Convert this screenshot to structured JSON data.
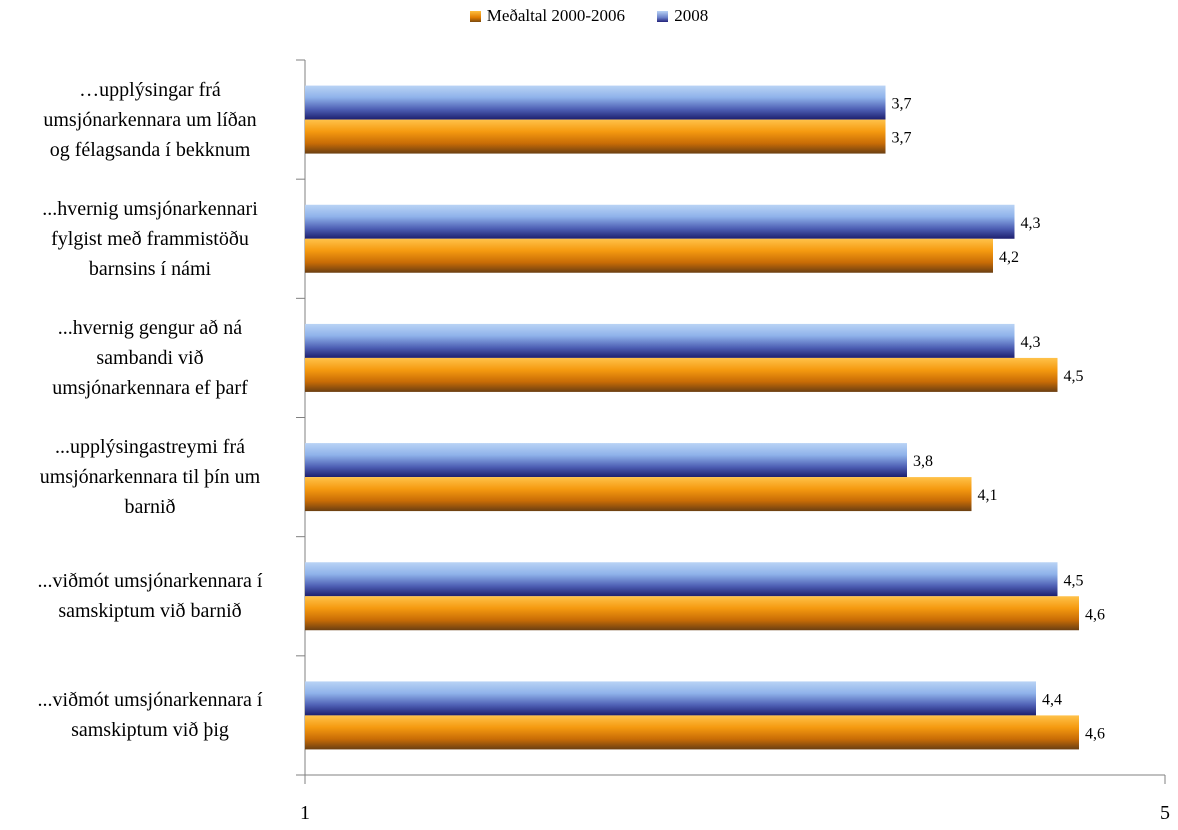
{
  "chart_data": {
    "type": "bar",
    "orientation": "horizontal",
    "categories": [
      [
        "…upplýsingar frá",
        "umsjónarkennara um líðan",
        "og félagsanda í bekknum"
      ],
      [
        "...hvernig umsjónarkennari",
        "fylgist með frammistöðu",
        "barnsins í námi"
      ],
      [
        "...hvernig gengur að ná",
        "sambandi við",
        "umsjónarkennara ef þarf"
      ],
      [
        "...upplýsingastreymi frá",
        "umsjónarkennara til þín um",
        "barnið"
      ],
      [
        "...viðmót umsjónarkennara í",
        "samskiptum við barnið"
      ],
      [
        "...viðmót umsjónarkennara í",
        "samskiptum við þig"
      ]
    ],
    "series": [
      {
        "name": "2008",
        "color": "#8db4e2",
        "values": [
          3.7,
          4.3,
          4.3,
          3.8,
          4.5,
          4.4
        ],
        "labels": [
          "3,7",
          "4,3",
          "4,3",
          "3,8",
          "4,5",
          "4,4"
        ]
      },
      {
        "name": "Meðaltal 2000-2006",
        "color": "#f7a21b",
        "values": [
          3.7,
          4.2,
          4.5,
          4.1,
          4.6,
          4.6
        ],
        "labels": [
          "3,7",
          "4,2",
          "4,5",
          "4,1",
          "4,6",
          "4,6"
        ]
      }
    ],
    "legend_order": [
      "Meðaltal 2000-2006",
      "2008"
    ],
    "legend_position": "top",
    "xlim": [
      1,
      5
    ],
    "xticks": [
      "1",
      "5"
    ],
    "grid": false
  }
}
